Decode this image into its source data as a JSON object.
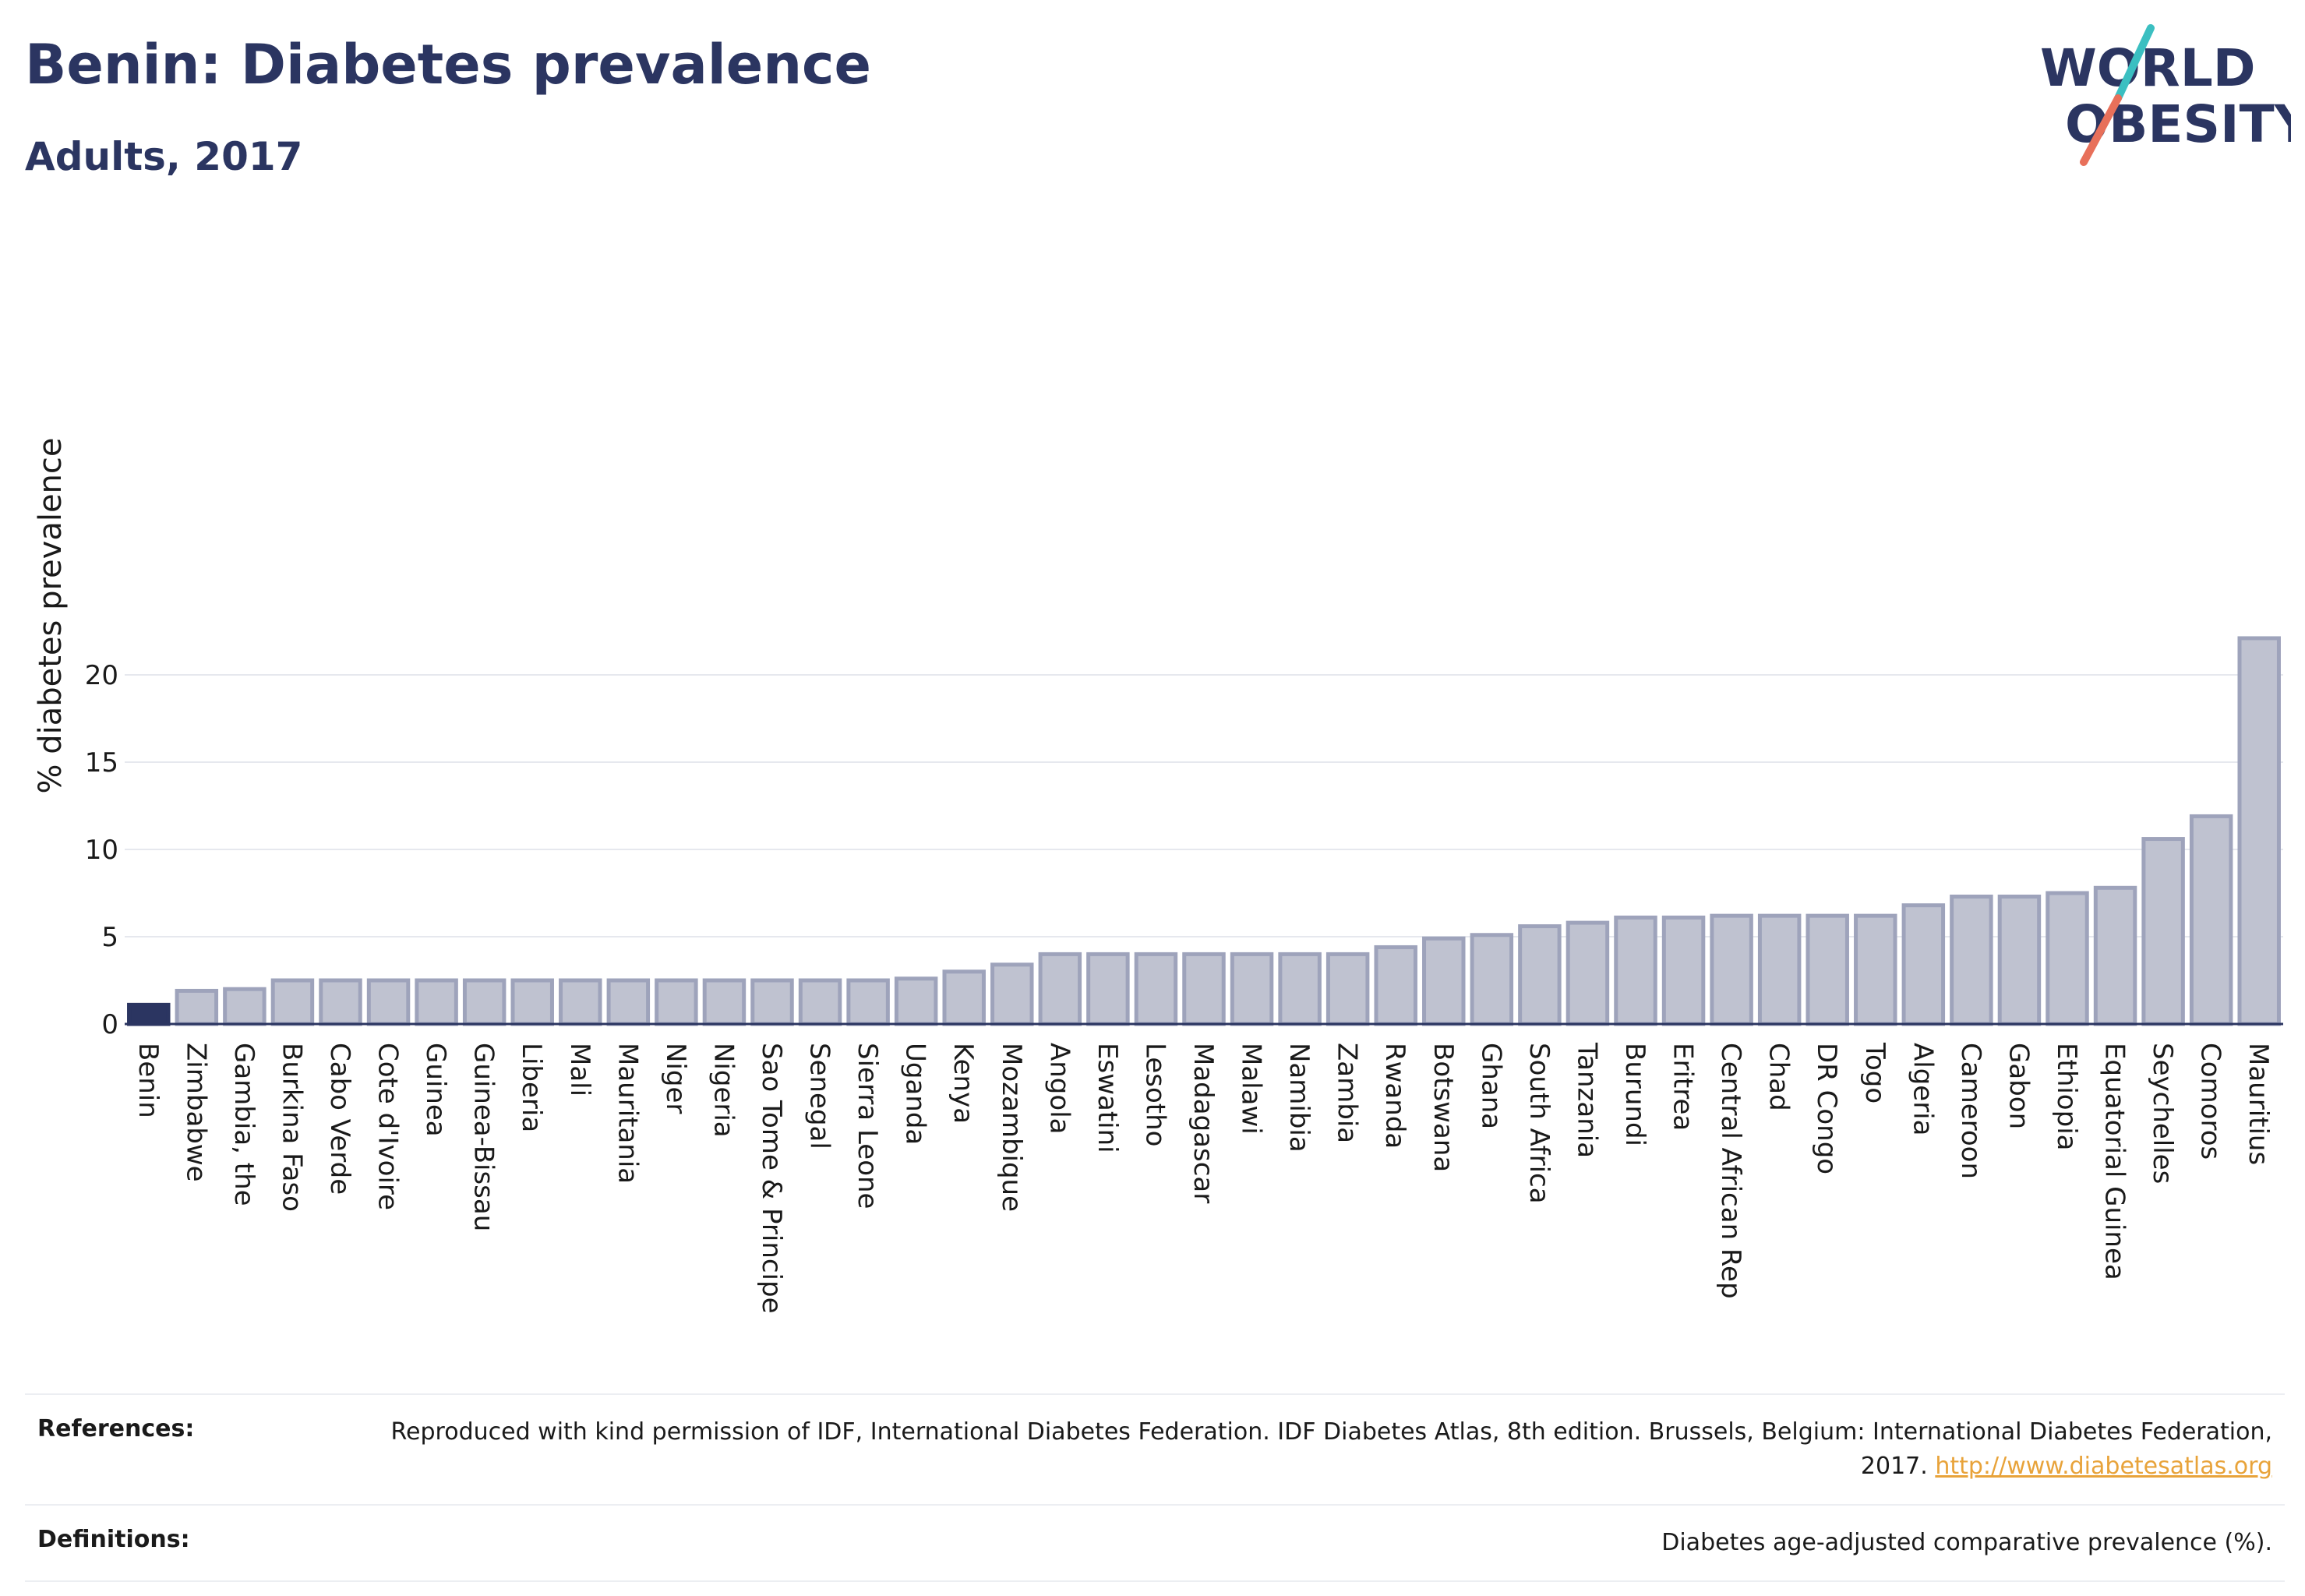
{
  "header": {
    "title": "Benin: Diabetes prevalence",
    "subtitle": "Adults, 2017",
    "logo_line1": "WORLD",
    "logo_line2": "OBESITY"
  },
  "colors": {
    "highlight": "#2b3561",
    "bar_fill": "#bfc2d0",
    "bar_stroke": "#9ea3bb",
    "text": "#2b3561",
    "link": "#e8a33a",
    "logo_teal": "#3bbfc1",
    "logo_coral": "#e8705a"
  },
  "chart_data": {
    "type": "bar",
    "title": "Benin: Diabetes prevalence",
    "subtitle": "Adults, 2017",
    "xlabel": "",
    "ylabel": "% diabetes prevalence",
    "ylim": [
      0,
      22
    ],
    "yticks": [
      0,
      5,
      10,
      15,
      20
    ],
    "grid": true,
    "highlight_category": "Benin",
    "categories": [
      "Benin",
      "Zimbabwe",
      "Gambia, the",
      "Burkina Faso",
      "Cabo Verde",
      "Cote d'Ivoire",
      "Guinea",
      "Guinea-Bissau",
      "Liberia",
      "Mali",
      "Mauritania",
      "Niger",
      "Nigeria",
      "Sao Tome & Principe",
      "Senegal",
      "Sierra Leone",
      "Uganda",
      "Kenya",
      "Mozambique",
      "Angola",
      "Eswatini",
      "Lesotho",
      "Madagascar",
      "Malawi",
      "Namibia",
      "Zambia",
      "Rwanda",
      "Botswana",
      "Ghana",
      "South Africa",
      "Tanzania",
      "Burundi",
      "Eritrea",
      "Central African Rep",
      "Chad",
      "DR Congo",
      "Togo",
      "Algeria",
      "Cameroon",
      "Gabon",
      "Ethiopia",
      "Equatorial Guinea",
      "Seychelles",
      "Comoros",
      "Mauritius"
    ],
    "values": [
      1.1,
      1.9,
      2.0,
      2.5,
      2.5,
      2.5,
      2.5,
      2.5,
      2.5,
      2.5,
      2.5,
      2.5,
      2.5,
      2.5,
      2.5,
      2.5,
      2.6,
      3.0,
      3.4,
      4.0,
      4.0,
      4.0,
      4.0,
      4.0,
      4.0,
      4.0,
      4.4,
      4.9,
      5.1,
      5.6,
      5.8,
      6.1,
      6.1,
      6.2,
      6.2,
      6.2,
      6.2,
      6.8,
      7.3,
      7.3,
      7.5,
      7.8,
      10.6,
      11.9,
      22.1
    ]
  },
  "footer": {
    "references_label": "References:",
    "references_text": "Reproduced with kind permission of IDF, International Diabetes Federation. IDF Diabetes Atlas, 8th edition. Brussels, Belgium: International Diabetes Federation, 2017.",
    "references_link": "http://www.diabetesatlas.org",
    "definitions_label": "Definitions:",
    "definitions_text": "Diabetes age-adjusted comparative prevalence (%)."
  }
}
